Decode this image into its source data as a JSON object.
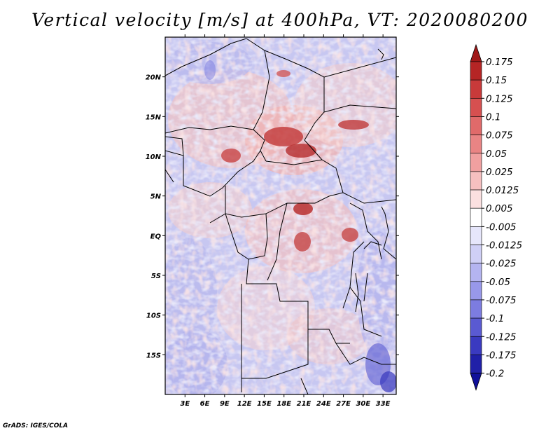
{
  "title": "Vertical velocity [m/s] at 400hPa, VT: 2020080200",
  "credit": "GrADS: IGES/COLA",
  "map": {
    "lat_ticks": [
      "20N",
      "15N",
      "10N",
      "5N",
      "EQ",
      "5S",
      "10S",
      "15S"
    ],
    "lat_values": [
      20,
      15,
      10,
      5,
      0,
      -5,
      -10,
      -15
    ],
    "lon_ticks": [
      "3E",
      "6E",
      "9E",
      "12E",
      "15E",
      "18E",
      "21E",
      "24E",
      "27E",
      "30E",
      "33E"
    ],
    "lon_values": [
      3,
      6,
      9,
      12,
      15,
      18,
      21,
      24,
      27,
      30,
      33
    ],
    "lon_range": [
      0,
      35
    ],
    "lat_range": [
      -20,
      25
    ]
  },
  "colorbar": {
    "labels": [
      "0.175",
      "0.15",
      "0.125",
      "0.1",
      "0.075",
      "0.05",
      "0.025",
      "0.0125",
      "0.005",
      "-0.005",
      "-0.0125",
      "-0.025",
      "-0.05",
      "-0.075",
      "-0.1",
      "-0.125",
      "-0.175",
      "-0.2"
    ],
    "colors": [
      "#a01818",
      "#b52525",
      "#c83a3a",
      "#d65050",
      "#e06a6a",
      "#e98484",
      "#f0a0a0",
      "#f6c0c0",
      "#fbe0e0",
      "#ffffff",
      "#e6e6fb",
      "#cfcff6",
      "#b4b4f0",
      "#9898ea",
      "#7c7ce0",
      "#5a5ad2",
      "#3a3ac0",
      "#2020a8",
      "#10109a"
    ]
  }
}
